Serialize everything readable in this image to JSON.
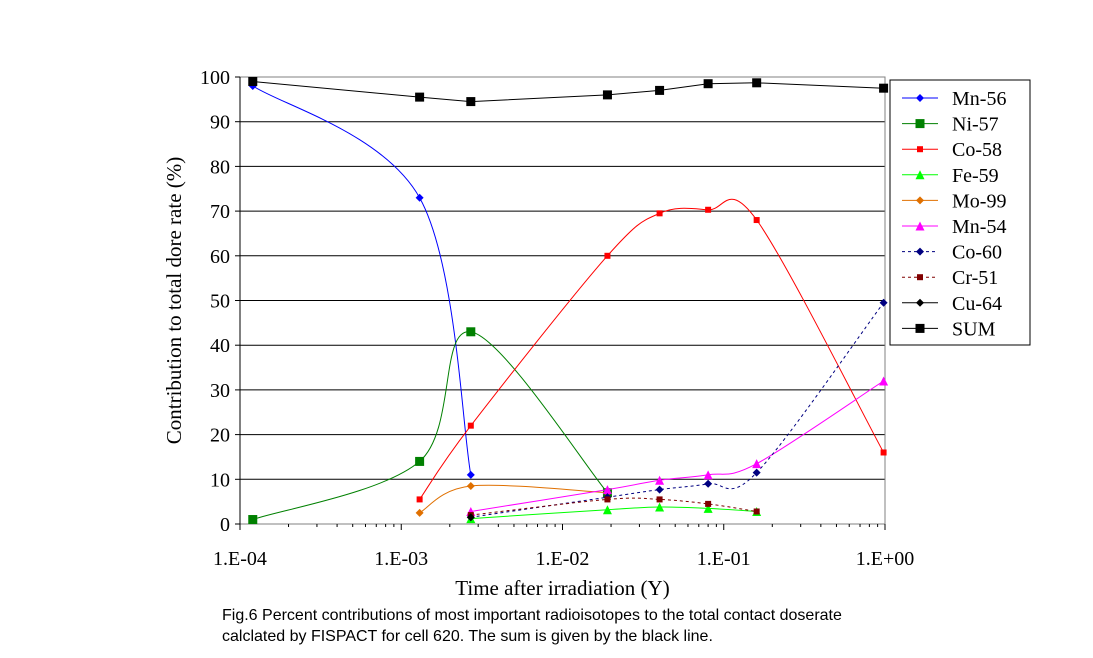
{
  "chart_data": {
    "type": "line",
    "xscale": "log",
    "xlim": [
      0.0001,
      1
    ],
    "ylim": [
      0,
      100
    ],
    "xticks": [
      0.0001,
      0.001,
      0.01,
      0.1,
      1
    ],
    "xtick_labels": [
      "1.E-04",
      "1.E-03",
      "1.E-02",
      "1.E-01",
      "1.E+00"
    ],
    "yticks": [
      0,
      10,
      20,
      30,
      40,
      50,
      60,
      70,
      80,
      90,
      100
    ],
    "xlabel": "Time after irradiation (Y)",
    "ylabel": "Contribution to total dore rate (%)",
    "grid": "horizontal",
    "legend_position": "right",
    "series": [
      {
        "name": "Mn-56",
        "color": "#0000ff",
        "marker": "diamond",
        "dashed": false,
        "x": [
          0.00012,
          0.0013,
          0.0027
        ],
        "y": [
          98,
          73,
          11
        ]
      },
      {
        "name": "Ni-57",
        "color": "#008000",
        "marker": "square",
        "dashed": false,
        "x": [
          0.00012,
          0.0013,
          0.0027,
          0.019
        ],
        "y": [
          1,
          14,
          43,
          7
        ]
      },
      {
        "name": "Co-58",
        "color": "#ff0000",
        "marker": "square",
        "dashed": false,
        "x": [
          0.0013,
          0.0027,
          0.019,
          0.04,
          0.08,
          0.16,
          0.98
        ],
        "y": [
          5.5,
          22,
          60,
          69.5,
          70.3,
          68,
          16
        ]
      },
      {
        "name": "Fe-59",
        "color": "#00ff00",
        "marker": "triangle",
        "dashed": false,
        "x": [
          0.0027,
          0.019,
          0.04,
          0.08,
          0.16
        ],
        "y": [
          1.2,
          3.2,
          3.8,
          3.5,
          2.8
        ]
      },
      {
        "name": "Mo-99",
        "color": "#e07000",
        "marker": "diamond",
        "dashed": false,
        "x": [
          0.0013,
          0.0027,
          0.019
        ],
        "y": [
          2.5,
          8.5,
          7
        ]
      },
      {
        "name": "Mn-54",
        "color": "#ff00ff",
        "marker": "triangle",
        "dashed": false,
        "x": [
          0.0027,
          0.019,
          0.04,
          0.08,
          0.16,
          0.98
        ],
        "y": [
          2.8,
          7.7,
          9.8,
          11,
          13.5,
          32
        ]
      },
      {
        "name": "Co-60",
        "color": "#000080",
        "marker": "diamond",
        "dashed": true,
        "x": [
          0.0027,
          0.019,
          0.04,
          0.08,
          0.16,
          0.98
        ],
        "y": [
          1.5,
          6,
          7.7,
          9,
          11.5,
          49.5
        ]
      },
      {
        "name": "Cr-51",
        "color": "#800000",
        "marker": "square",
        "dashed": true,
        "x": [
          0.0027,
          0.019,
          0.04,
          0.08,
          0.16
        ],
        "y": [
          2,
          5.5,
          5.5,
          4.5,
          2.8
        ]
      },
      {
        "name": "Cu-64",
        "color": "#000000",
        "marker": "diamond",
        "dashed": false,
        "x": [
          0.0027
        ],
        "y": [
          1.5
        ]
      },
      {
        "name": "SUM",
        "color": "#000000",
        "marker": "square",
        "dashed": false,
        "x": [
          0.00012,
          0.0013,
          0.0027,
          0.019,
          0.04,
          0.08,
          0.16,
          0.98
        ],
        "y": [
          99,
          95.5,
          94.5,
          96,
          97,
          98.5,
          98.7,
          97.5
        ]
      }
    ]
  },
  "caption": {
    "line1": "Fig.6 Percent contributions of most important radioisotopes to the total contact doserate",
    "line2": "calclated by FISPACT for cell 620. The sum is given by the black line."
  }
}
